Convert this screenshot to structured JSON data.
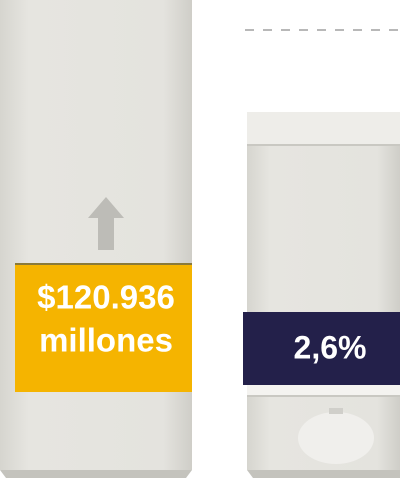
{
  "panels": [
    {
      "label_lines": [
        "$120.936",
        "millones"
      ]
    },
    {
      "label": "2,6%"
    }
  ]
}
